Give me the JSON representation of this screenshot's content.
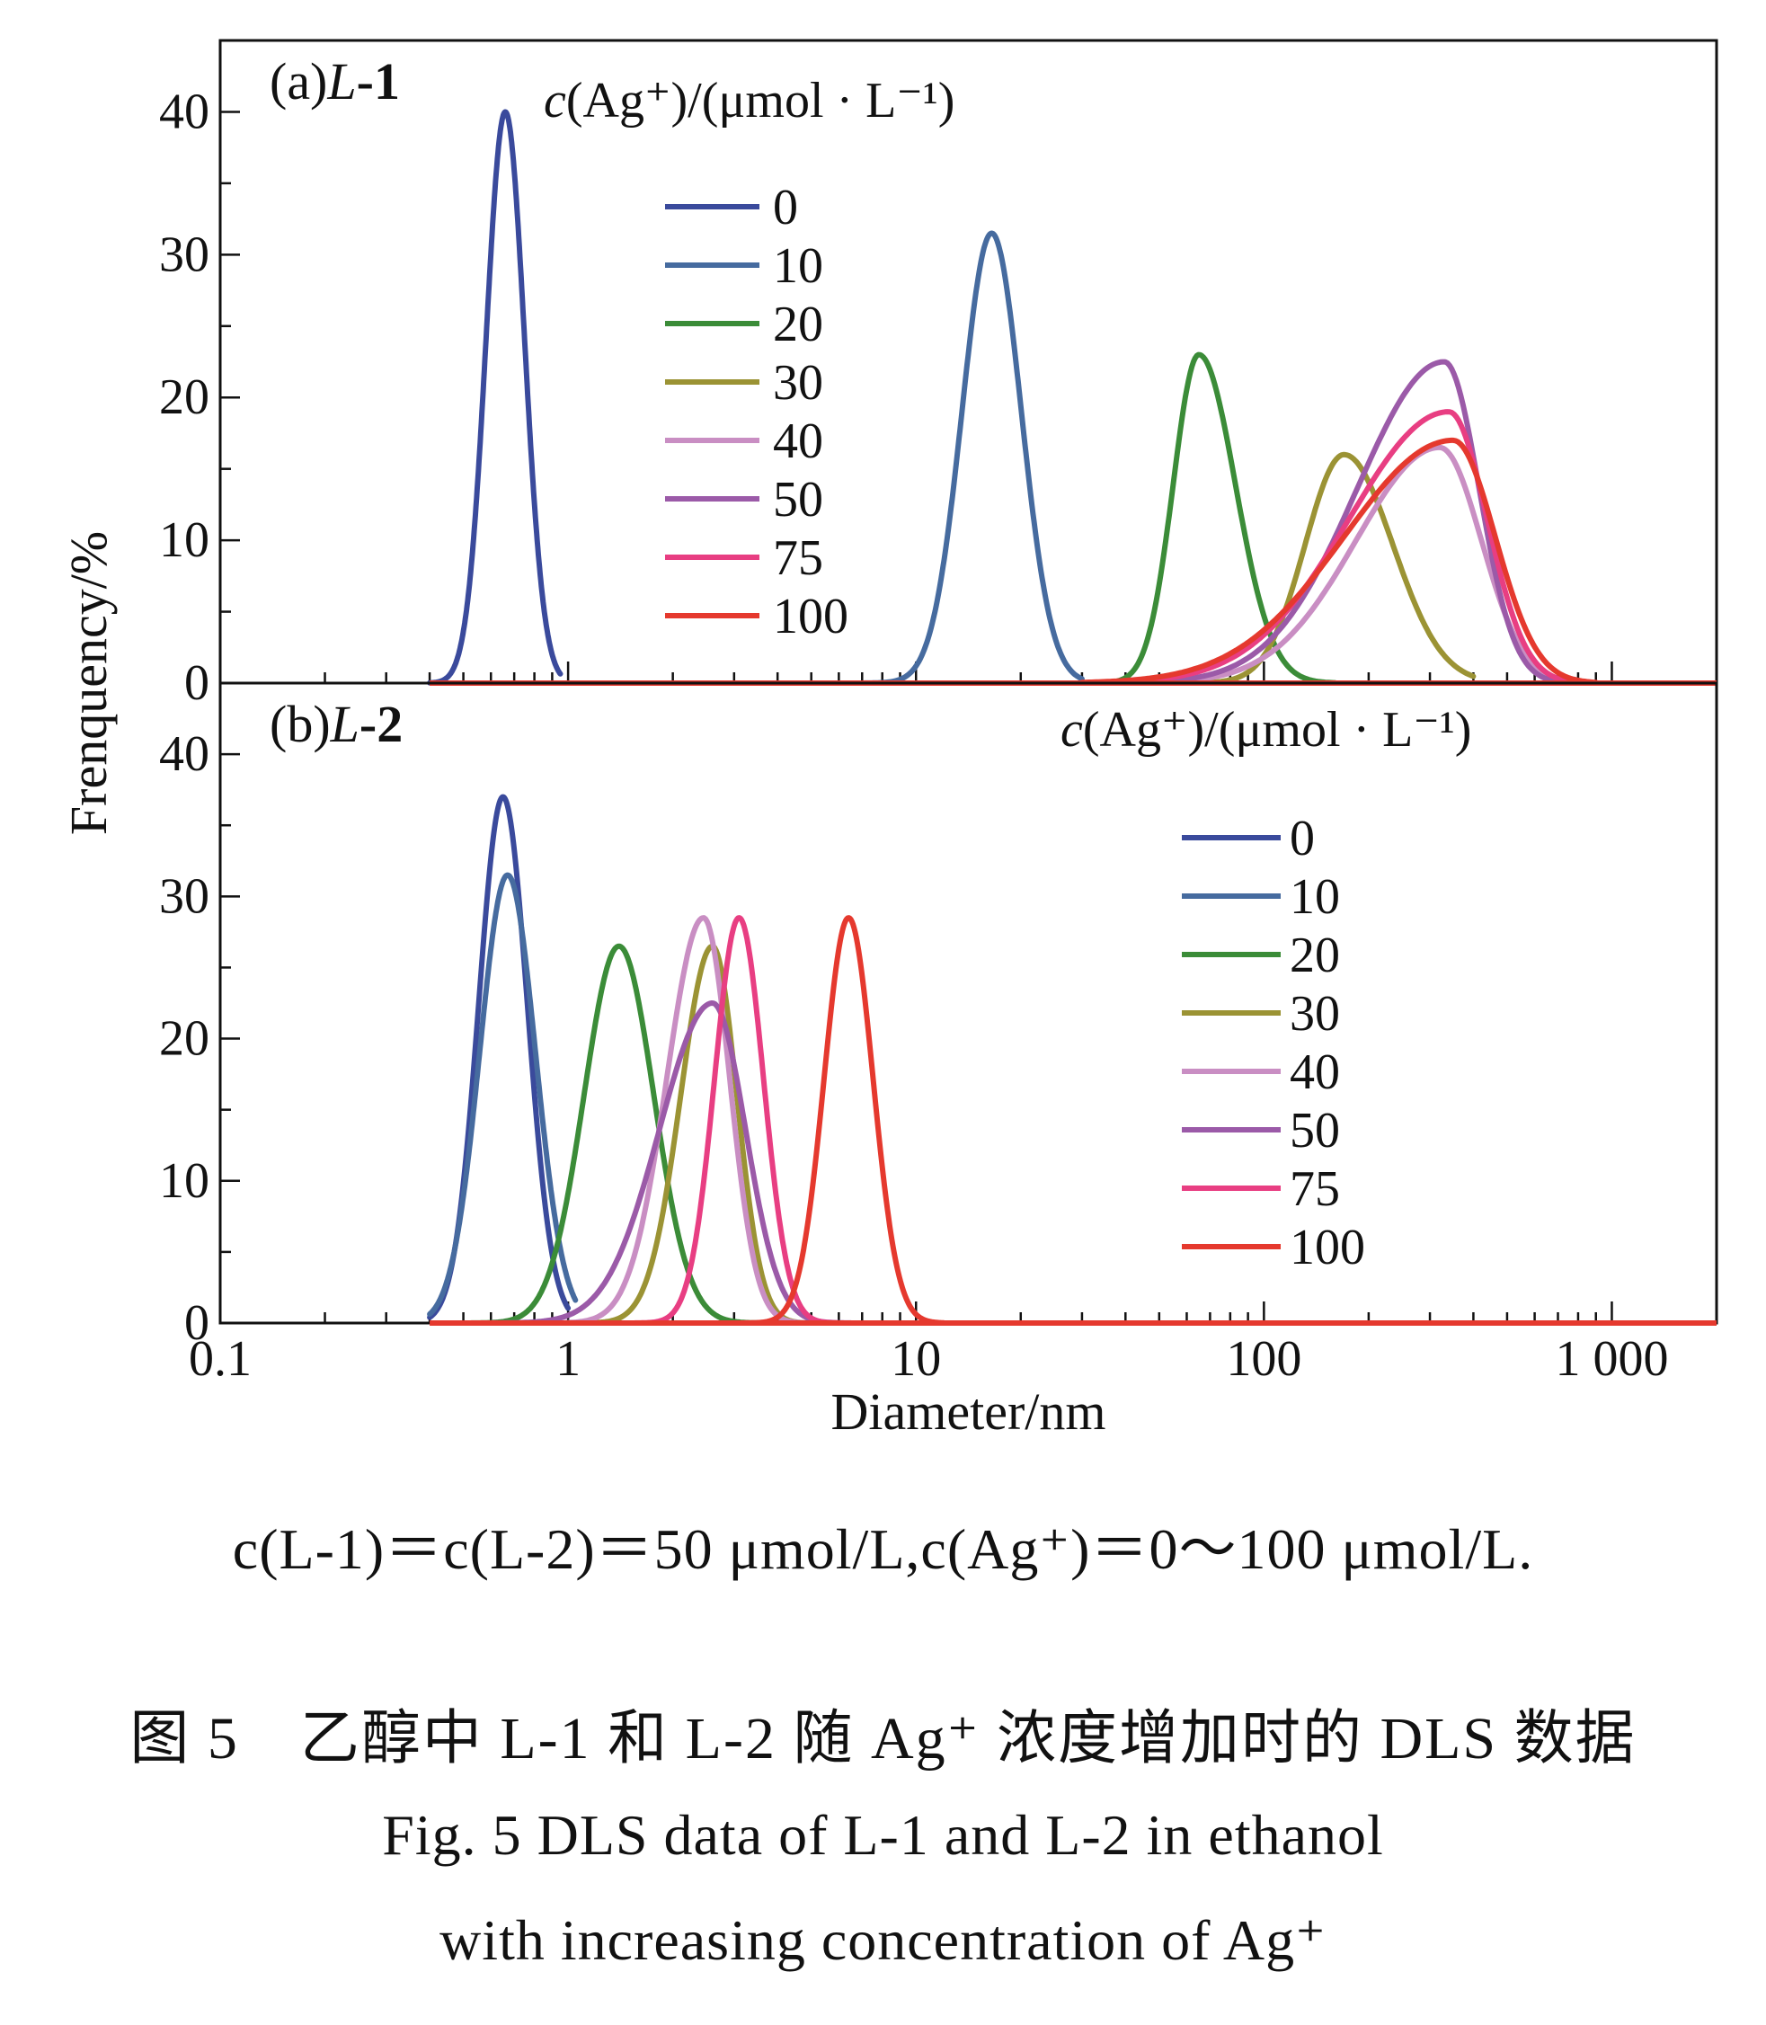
{
  "chart_data": [
    {
      "type": "line",
      "panel_label": "(a)L-1",
      "xscale": "log",
      "xlim": [
        0.1,
        2000
      ],
      "ylim": [
        0,
        45
      ],
      "xlabel": "Diameter/nm",
      "ylabel": "Frenquency/%",
      "y_ticks": [
        "0",
        "10",
        "20",
        "30",
        "40"
      ],
      "legend_title": "c(Ag⁺)/(μmol · L⁻¹)",
      "legend_location": "upper-middle",
      "series": [
        {
          "name": "0",
          "color": "#3a4a9c",
          "peak_x": 0.66,
          "peak_y": 40.0,
          "width": 0.055,
          "range": [
            0.4,
            0.95
          ]
        },
        {
          "name": "10",
          "color": "#466b9f",
          "peak_x": 16.5,
          "peak_y": 31.5,
          "width": 0.085,
          "range": [
            7,
            30
          ]
        },
        {
          "name": "20",
          "color": "#3b8c38",
          "peak_x": 65,
          "peak_y": 23.0,
          "width": 0.105,
          "left_tail": 0.7,
          "range": [
            15,
            160
          ]
        },
        {
          "name": "30",
          "color": "#9b9334",
          "peak_x": 170,
          "peak_y": 16.0,
          "width": 0.14,
          "left_tail": 0.8,
          "range": [
            30,
            400
          ]
        },
        {
          "name": "40",
          "color": "#c98ec3",
          "peak_x": 320,
          "peak_y": 16.5,
          "width": 0.12,
          "left_tail": 2.0,
          "range": [
            30,
            700
          ]
        },
        {
          "name": "50",
          "color": "#9b5aa8",
          "peak_x": 330,
          "peak_y": 22.5,
          "width": 0.1,
          "left_tail": 2.5,
          "range": [
            30,
            800
          ]
        },
        {
          "name": "75",
          "color": "#e83e82",
          "peak_x": 340,
          "peak_y": 19.0,
          "width": 0.11,
          "left_tail": 2.6,
          "range": [
            30,
            800
          ]
        },
        {
          "name": "100",
          "color": "#e5392e",
          "peak_x": 350,
          "peak_y": 17.0,
          "width": 0.12,
          "left_tail": 2.6,
          "range": [
            30,
            900
          ]
        }
      ]
    },
    {
      "type": "line",
      "panel_label": "(b)L-2",
      "xscale": "log",
      "xlim": [
        0.1,
        2000
      ],
      "ylim": [
        0,
        45
      ],
      "xlabel": "Diameter/nm",
      "ylabel": "Frenquency/%",
      "x_ticks": [
        "0.1",
        "1",
        "10",
        "100",
        "1 000"
      ],
      "y_ticks": [
        "0",
        "10",
        "20",
        "30",
        "40"
      ],
      "legend_title": "c(Ag⁺)/(μmol · L⁻¹)",
      "legend_location": "upper-right",
      "series": [
        {
          "name": "0",
          "color": "#3a4a9c",
          "peak_x": 0.65,
          "peak_y": 37.0,
          "width": 0.07,
          "range": [
            0.4,
            1.0
          ]
        },
        {
          "name": "10",
          "color": "#466b9f",
          "peak_x": 0.67,
          "peak_y": 31.5,
          "width": 0.08,
          "range": [
            0.4,
            1.05
          ]
        },
        {
          "name": "20",
          "color": "#3b8c38",
          "peak_x": 1.4,
          "peak_y": 26.5,
          "width": 0.1,
          "range": [
            0.5,
            3.8
          ]
        },
        {
          "name": "30",
          "color": "#9b9334",
          "peak_x": 2.6,
          "peak_y": 26.5,
          "width": 0.07,
          "left_tail": 1.3,
          "range": [
            0.6,
            5.5
          ]
        },
        {
          "name": "40",
          "color": "#c98ec3",
          "peak_x": 2.45,
          "peak_y": 28.5,
          "width": 0.075,
          "left_tail": 1.4,
          "range": [
            0.6,
            5.5
          ]
        },
        {
          "name": "50",
          "color": "#9b5aa8",
          "peak_x": 2.6,
          "peak_y": 22.5,
          "width": 0.095,
          "left_tail": 1.6,
          "range": [
            0.6,
            6.5
          ]
        },
        {
          "name": "75",
          "color": "#e83e82",
          "peak_x": 3.1,
          "peak_y": 28.5,
          "width": 0.07,
          "range": [
            1.2,
            6.0
          ]
        },
        {
          "name": "100",
          "color": "#e5392e",
          "peak_x": 6.4,
          "peak_y": 28.5,
          "width": 0.07,
          "range": [
            2.5,
            12.0
          ]
        }
      ]
    }
  ],
  "captions": {
    "conditions": "c(L-1)＝c(L-2)＝50 μmol/L,c(Ag⁺)＝0～100 μmol/L.",
    "zh": "图 5　乙醇中 L-1 和 L-2 随 Ag⁺ 浓度增加时的 DLS 数据",
    "en_line1": "Fig. 5  DLS data of L-1 and L-2 in ethanol",
    "en_line2": "with increasing concentration of Ag⁺"
  }
}
